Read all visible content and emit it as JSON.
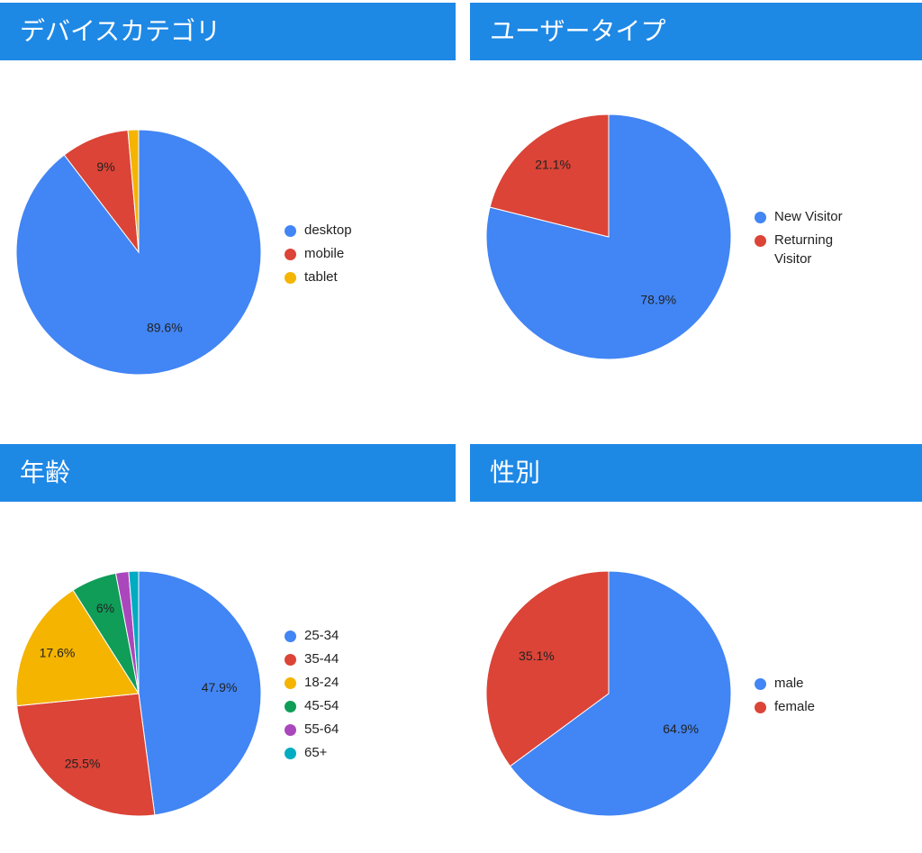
{
  "chart_data": [
    {
      "type": "pie",
      "title": "デバイスカテゴリ",
      "categories": [
        "desktop",
        "mobile",
        "tablet"
      ],
      "values": [
        89.6,
        9.0,
        1.4
      ],
      "labels": [
        "89.6%",
        "9%",
        ""
      ],
      "colors": [
        "#4285f4",
        "#db4437",
        "#f4b400"
      ],
      "legend": "right"
    },
    {
      "type": "pie",
      "title": "ユーザータイプ",
      "categories": [
        "New Visitor",
        "Returning Visitor"
      ],
      "values": [
        78.9,
        21.1
      ],
      "labels": [
        "78.9%",
        "21.1%"
      ],
      "colors": [
        "#4285f4",
        "#db4437"
      ],
      "legend": "right"
    },
    {
      "type": "pie",
      "title": "年齢",
      "categories": [
        "25-34",
        "35-44",
        "18-24",
        "45-54",
        "55-64",
        "65+"
      ],
      "values": [
        47.9,
        25.5,
        17.6,
        6.0,
        1.7,
        1.3
      ],
      "labels": [
        "47.9%",
        "25.5%",
        "17.6%",
        "6%",
        "",
        ""
      ],
      "colors": [
        "#4285f4",
        "#db4437",
        "#f4b400",
        "#0f9d58",
        "#ab47bc",
        "#00acc1"
      ],
      "legend": "right"
    },
    {
      "type": "pie",
      "title": "性別",
      "categories": [
        "male",
        "female"
      ],
      "values": [
        64.9,
        35.1
      ],
      "labels": [
        "64.9%",
        "35.1%"
      ],
      "colors": [
        "#4285f4",
        "#db4437"
      ],
      "legend": "right"
    }
  ]
}
